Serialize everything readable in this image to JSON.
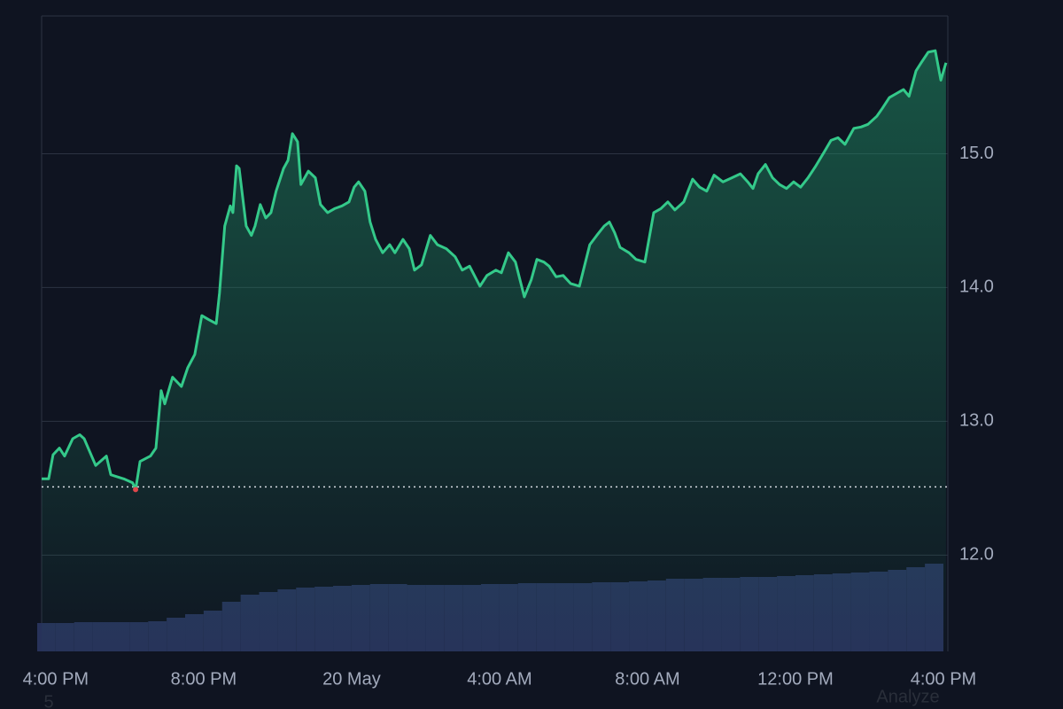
{
  "chart_data": {
    "type": "line",
    "x": [
      -0.38,
      -0.19,
      -0.07,
      0.1,
      0.24,
      0.46,
      0.65,
      0.77,
      1.08,
      1.37,
      1.49,
      1.84,
      2.08,
      2.16,
      2.28,
      2.56,
      2.71,
      2.85,
      2.95,
      3.16,
      3.4,
      3.57,
      3.76,
      3.95,
      4.14,
      4.34,
      4.43,
      4.57,
      4.72,
      4.79,
      4.89,
      4.96,
      5.15,
      5.29,
      5.39,
      5.53,
      5.68,
      5.82,
      5.96,
      6.16,
      6.28,
      6.4,
      6.54,
      6.63,
      6.83,
      7.02,
      7.16,
      7.35,
      7.54,
      7.74,
      7.93,
      8.07,
      8.19,
      8.36,
      8.5,
      8.65,
      8.84,
      9.03,
      9.17,
      9.39,
      9.56,
      9.7,
      9.89,
      10.13,
      10.32,
      10.56,
      10.8,
      10.99,
      11.19,
      11.47,
      11.66,
      11.9,
      12.05,
      12.24,
      12.43,
      12.67,
      12.86,
      13.01,
      13.2,
      13.34,
      13.53,
      13.72,
      13.92,
      14.16,
      14.44,
      14.63,
      14.83,
      14.97,
      15.11,
      15.26,
      15.5,
      15.69,
      15.93,
      16.17,
      16.36,
      16.55,
      16.74,
      16.98,
      17.22,
      17.41,
      17.6,
      17.8,
      18.04,
      18.28,
      18.51,
      18.71,
      18.85,
      18.99,
      19.19,
      19.38,
      19.57,
      19.76,
      19.95,
      20.14,
      20.34,
      20.53,
      20.77,
      20.96,
      21.15,
      21.34,
      21.58,
      21.77,
      21.96,
      22.2,
      22.35,
      22.54,
      22.73,
      22.92,
      23.07,
      23.26,
      23.4,
      23.59,
      23.78,
      23.93,
      24.07
    ],
    "series": [
      {
        "color": "#34c98a",
        "values": [
          12.57,
          12.57,
          12.75,
          12.8,
          12.74,
          12.87,
          12.9,
          12.87,
          12.67,
          12.74,
          12.6,
          12.57,
          12.54,
          12.49,
          12.7,
          12.74,
          12.8,
          13.23,
          13.13,
          13.33,
          13.26,
          13.4,
          13.5,
          13.79,
          13.76,
          13.73,
          13.96,
          14.46,
          14.61,
          14.56,
          14.91,
          14.89,
          14.46,
          14.39,
          14.46,
          14.62,
          14.52,
          14.56,
          14.72,
          14.89,
          14.95,
          15.15,
          15.09,
          14.77,
          14.87,
          14.82,
          14.62,
          14.56,
          14.59,
          14.61,
          14.64,
          14.75,
          14.79,
          14.72,
          14.49,
          14.36,
          14.26,
          14.32,
          14.26,
          14.36,
          14.29,
          14.13,
          14.17,
          14.39,
          14.32,
          14.29,
          14.23,
          14.13,
          14.16,
          14.01,
          14.09,
          14.13,
          14.11,
          14.26,
          14.19,
          13.93,
          14.06,
          14.21,
          14.19,
          14.16,
          14.08,
          14.09,
          14.03,
          14.01,
          14.32,
          14.39,
          14.46,
          14.49,
          14.41,
          14.3,
          14.26,
          14.21,
          14.19,
          14.56,
          14.59,
          14.64,
          14.58,
          14.64,
          14.81,
          14.75,
          14.72,
          14.84,
          14.79,
          14.82,
          14.85,
          14.79,
          14.74,
          14.85,
          14.92,
          14.82,
          14.77,
          14.74,
          14.79,
          14.75,
          14.82,
          14.9,
          15.01,
          15.1,
          15.12,
          15.07,
          15.19,
          15.2,
          15.22,
          15.28,
          15.34,
          15.42,
          15.45,
          15.48,
          15.43,
          15.62,
          15.68,
          15.76,
          15.77,
          15.55,
          15.68
        ]
      }
    ],
    "baseline": 12.51,
    "low_color": "#e0474c",
    "xlim": [
      -0.38,
      24.12
    ],
    "xticks": [
      {
        "value": 0,
        "label": "4:00 PM"
      },
      {
        "value": 4,
        "label": "8:00 PM"
      },
      {
        "value": 8,
        "label": "20 May"
      },
      {
        "value": 12,
        "label": "4:00 AM"
      },
      {
        "value": 16,
        "label": "8:00 AM"
      },
      {
        "value": 20,
        "label": "12:00 PM"
      },
      {
        "value": 24,
        "label": "4:00 PM"
      }
    ],
    "ylim": [
      11.28,
      16.03
    ],
    "yticks": [
      {
        "value": 12,
        "label": "12.0"
      },
      {
        "value": 13,
        "label": "13.0"
      },
      {
        "value": 14,
        "label": "14.0"
      },
      {
        "value": 15,
        "label": "15.0"
      }
    ],
    "grid": true,
    "volume": {
      "color": "#27325a",
      "width": 0.5,
      "ylim": [
        0,
        717
      ],
      "x": [
        -0.25,
        0.25,
        0.75,
        1.25,
        1.75,
        2.25,
        2.75,
        3.25,
        3.75,
        4.25,
        4.75,
        5.25,
        5.75,
        6.25,
        6.75,
        7.25,
        7.75,
        8.25,
        8.75,
        9.25,
        9.75,
        10.25,
        10.75,
        11.25,
        11.75,
        12.25,
        12.75,
        13.25,
        13.75,
        14.25,
        14.75,
        15.25,
        15.75,
        16.25,
        16.75,
        17.25,
        17.75,
        18.25,
        18.75,
        19.25,
        19.75,
        20.25,
        20.75,
        21.25,
        21.75,
        22.25,
        22.75,
        23.25,
        23.75
      ],
      "values": [
        32,
        32,
        33,
        33,
        33,
        33,
        34,
        38,
        42,
        46,
        56,
        64,
        67,
        70,
        72,
        73,
        74,
        75,
        76,
        76,
        75,
        75,
        75,
        75,
        76,
        76,
        77,
        77,
        77,
        77,
        78,
        78,
        79,
        80,
        82,
        82,
        83,
        83,
        84,
        84,
        85,
        86,
        87,
        88,
        89,
        90,
        92,
        95,
        99
      ]
    }
  },
  "footer": [
    "5",
    "Analyze"
  ]
}
